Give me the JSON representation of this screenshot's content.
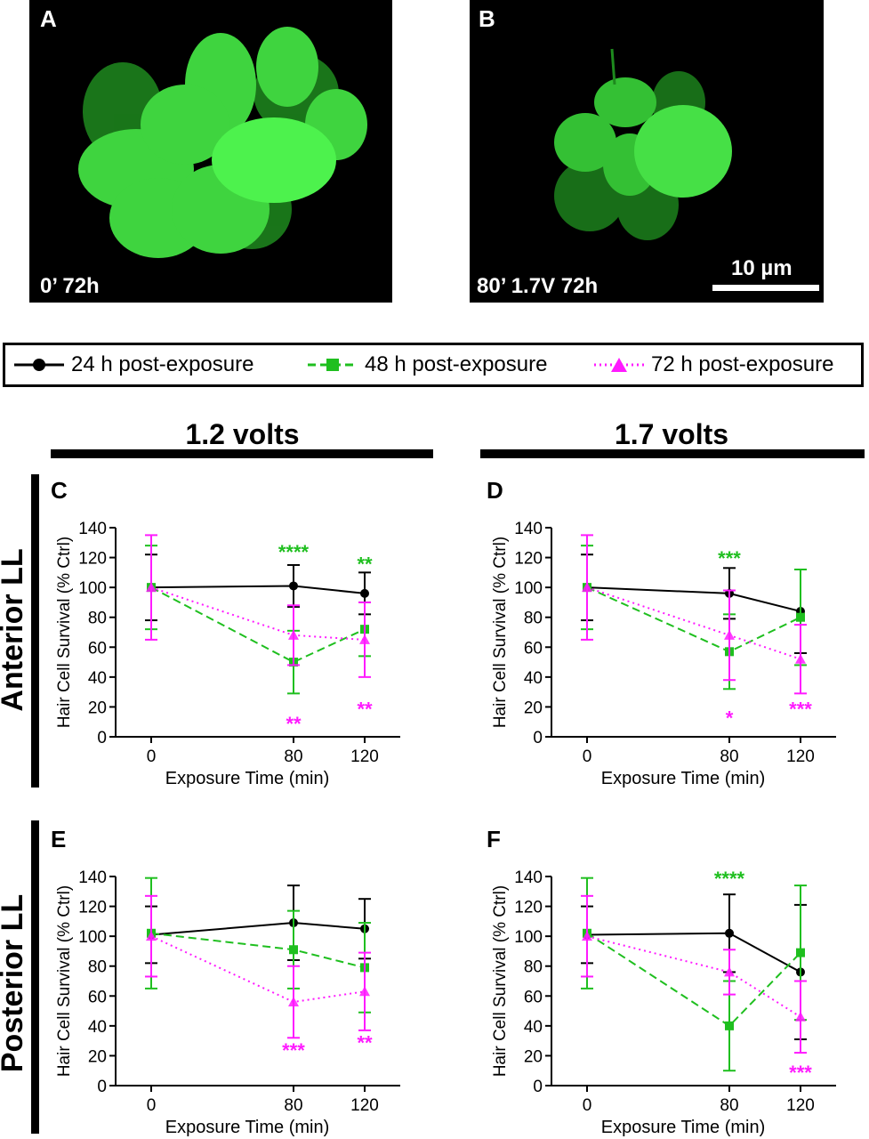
{
  "micrographs": [
    {
      "panel": "A",
      "caption": "0’ 72h"
    },
    {
      "panel": "B",
      "caption": "80’ 1.7V 72h",
      "scalebar_label": "10 µm"
    }
  ],
  "legend": [
    {
      "label": "24 h post-exposure",
      "color": "#000000",
      "marker": "circle",
      "line": "solid"
    },
    {
      "label": "48 h post-exposure",
      "color": "#1fbf1f",
      "marker": "square",
      "line": "dashed"
    },
    {
      "label": "72 h post-exposure",
      "color": "#ff1aff",
      "marker": "triangle",
      "line": "dotted"
    }
  ],
  "columns": [
    "1.2 volts",
    "1.7 volts"
  ],
  "rows": [
    "Anterior LL",
    "Posterior LL"
  ],
  "chart_data": [
    {
      "panel": "C",
      "type": "line",
      "xlabel": "Exposure Time (min)",
      "ylabel": "Hair Cell Survival (% Ctrl)",
      "x": [
        0,
        80,
        120
      ],
      "ylim": [
        0,
        140
      ],
      "yticks": [
        0,
        20,
        40,
        60,
        80,
        100,
        120,
        140
      ],
      "series": [
        {
          "name": "24 h post-exposure",
          "values": [
            100,
            101,
            96
          ],
          "err": [
            22,
            14,
            14
          ]
        },
        {
          "name": "48 h post-exposure",
          "values": [
            100,
            50,
            72
          ],
          "err": [
            28,
            21,
            18
          ]
        },
        {
          "name": "72 h post-exposure",
          "values": [
            100,
            68,
            65
          ],
          "err": [
            35,
            20,
            25
          ]
        }
      ],
      "annotations": [
        {
          "x": 80,
          "y": 125,
          "text": "****",
          "series": "48 h post-exposure"
        },
        {
          "x": 120,
          "y": 117,
          "text": "**",
          "series": "48 h post-exposure"
        },
        {
          "x": 80,
          "y": 10,
          "text": "**",
          "series": "72 h post-exposure"
        },
        {
          "x": 120,
          "y": 20,
          "text": "**",
          "series": "72 h post-exposure"
        }
      ]
    },
    {
      "panel": "D",
      "type": "line",
      "xlabel": "Exposure Time (min)",
      "ylabel": "Hair Cell Survival (% Ctrl)",
      "x": [
        0,
        80,
        120
      ],
      "ylim": [
        0,
        140
      ],
      "yticks": [
        0,
        20,
        40,
        60,
        80,
        100,
        120,
        140
      ],
      "series": [
        {
          "name": "24 h post-exposure",
          "values": [
            100,
            96,
            84
          ],
          "err": [
            22,
            17,
            28
          ]
        },
        {
          "name": "48 h post-exposure",
          "values": [
            100,
            57,
            80
          ],
          "err": [
            28,
            25,
            32
          ]
        },
        {
          "name": "72 h post-exposure",
          "values": [
            100,
            68,
            52
          ],
          "err": [
            35,
            30,
            23
          ]
        }
      ],
      "annotations": [
        {
          "x": 80,
          "y": 121,
          "text": "***",
          "series": "48 h post-exposure"
        },
        {
          "x": 80,
          "y": 14,
          "text": "*",
          "series": "72 h post-exposure"
        },
        {
          "x": 120,
          "y": 20,
          "text": "***",
          "series": "72 h post-exposure"
        }
      ]
    },
    {
      "panel": "E",
      "type": "line",
      "xlabel": "Exposure Time (min)",
      "ylabel": "Hair Cell Survival (% Ctrl)",
      "x": [
        0,
        80,
        120
      ],
      "ylim": [
        0,
        140
      ],
      "yticks": [
        0,
        20,
        40,
        60,
        80,
        100,
        120,
        140
      ],
      "series": [
        {
          "name": "24 h post-exposure",
          "values": [
            101,
            109,
            105
          ],
          "err": [
            19,
            25,
            20
          ]
        },
        {
          "name": "48 h post-exposure",
          "values": [
            102,
            91,
            79
          ],
          "err": [
            37,
            26,
            30
          ]
        },
        {
          "name": "72 h post-exposure",
          "values": [
            100,
            56,
            63
          ],
          "err": [
            27,
            24,
            26
          ]
        }
      ],
      "annotations": [
        {
          "x": 80,
          "y": 25,
          "text": "***",
          "series": "72 h post-exposure"
        },
        {
          "x": 120,
          "y": 30,
          "text": "**",
          "series": "72 h post-exposure"
        }
      ]
    },
    {
      "panel": "F",
      "type": "line",
      "xlabel": "Exposure Time (min)",
      "ylabel": "Hair Cell Survival (% Ctrl)",
      "x": [
        0,
        80,
        120
      ],
      "ylim": [
        0,
        140
      ],
      "yticks": [
        0,
        20,
        40,
        60,
        80,
        100,
        120,
        140
      ],
      "series": [
        {
          "name": "24 h post-exposure",
          "values": [
            101,
            102,
            76
          ],
          "err": [
            19,
            26,
            45
          ]
        },
        {
          "name": "48 h post-exposure",
          "values": [
            102,
            40,
            89
          ],
          "err": [
            37,
            30,
            45
          ]
        },
        {
          "name": "72 h post-exposure",
          "values": [
            100,
            76,
            46
          ],
          "err": [
            27,
            15,
            24
          ]
        }
      ],
      "annotations": [
        {
          "x": 80,
          "y": 140,
          "text": "****",
          "series": "48 h post-exposure"
        },
        {
          "x": 120,
          "y": 10,
          "text": "***",
          "series": "72 h post-exposure"
        }
      ]
    }
  ]
}
